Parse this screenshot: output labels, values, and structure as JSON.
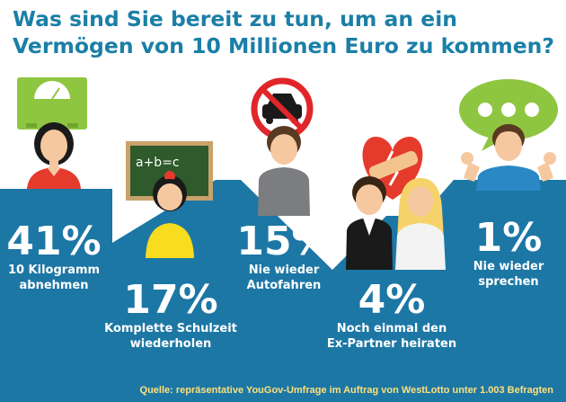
{
  "chart_data": {
    "type": "bar",
    "title": [
      "Was sind Sie bereit zu tun, um an ein",
      "Vermögen von 10 Millionen Euro zu kommen?"
    ],
    "unit": "%",
    "categories": [
      [
        "10 Kilogramm",
        "abnehmen"
      ],
      [
        "Komplette Schulzeit",
        "wiederholen"
      ],
      [
        "Nie wieder",
        "Autofahren"
      ],
      [
        "Noch einmal den",
        "Ex-Partner heiraten"
      ],
      [
        "Nie wieder",
        "sprechen"
      ]
    ],
    "values": [
      41,
      17,
      15,
      4,
      1
    ],
    "value_labels": [
      "41%",
      "17%",
      "15%",
      "4%",
      "1%"
    ],
    "source": "Quelle: repräsentative YouGov-Umfrage im Auftrag von WestLotto unter 1.003 Befragten"
  },
  "colors": {
    "title": "#1b7fa6",
    "band": "#1c77a5",
    "text_on_band": "#ffffff",
    "source_text": "#ffe07a"
  },
  "icons": [
    "scale-icon",
    "chalkboard-icon",
    "no-car-sign-icon",
    "broken-heart-icon",
    "speech-bubble-icon"
  ]
}
